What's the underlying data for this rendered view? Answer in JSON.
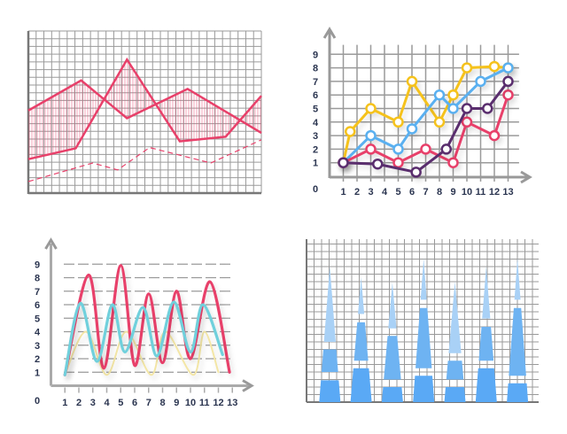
{
  "chart_data": [
    {
      "type": "area",
      "grid": true,
      "xlim": [
        0,
        30
      ],
      "ylim": [
        0,
        21
      ],
      "color": "#e8406a",
      "series": [
        {
          "style": "solid",
          "x": [
            0,
            6.8,
            12.7,
            20.5,
            30
          ],
          "y": [
            10.7,
            14.6,
            9.7,
            13.5,
            7.8
          ]
        },
        {
          "style": "solid",
          "x": [
            0,
            6.1,
            12.7,
            19.5,
            25.4,
            30
          ],
          "y": [
            4.4,
            5.8,
            17.3,
            6.7,
            7.3,
            12.6
          ]
        },
        {
          "style": "dashed",
          "x": [
            0,
            8.3,
            11.5,
            15.6,
            23.5,
            30
          ],
          "y": [
            1.5,
            3.9,
            3.0,
            5.9,
            3.9,
            6.9
          ]
        }
      ],
      "fill_between": [
        0,
        1
      ]
    },
    {
      "type": "line",
      "grid": true,
      "xlim": [
        0,
        14
      ],
      "ylim": [
        0,
        9.5
      ],
      "origin_label": "0",
      "x_ticks": [
        "1",
        "2",
        "3",
        "4",
        "5",
        "6",
        "7",
        "8",
        "9",
        "10",
        "11",
        "12",
        "13"
      ],
      "y_ticks": [
        "1",
        "2",
        "3",
        "4",
        "5",
        "6",
        "7",
        "8",
        "9"
      ],
      "series": [
        {
          "color": "#f5c21b",
          "x": [
            1,
            1.5,
            3,
            5,
            6,
            8,
            9,
            10,
            12,
            13
          ],
          "y": [
            1,
            3.3,
            5,
            4,
            7,
            4,
            6,
            8,
            8.1,
            8
          ]
        },
        {
          "color": "#5ab0f0",
          "x": [
            1,
            3,
            5,
            6,
            8,
            9,
            11,
            13
          ],
          "y": [
            1,
            3,
            2,
            3.5,
            6,
            5,
            7,
            8
          ]
        },
        {
          "color": "#e8406a",
          "x": [
            1,
            3,
            5,
            7,
            9,
            10,
            12,
            13
          ],
          "y": [
            1,
            2,
            1,
            2,
            1,
            4,
            3,
            6
          ]
        },
        {
          "color": "#5a2d6e",
          "x": [
            1,
            3.5,
            6.3,
            8.5,
            10,
            11.5,
            13
          ],
          "y": [
            1,
            0.9,
            0.3,
            2,
            5,
            5,
            7
          ]
        }
      ]
    },
    {
      "type": "line",
      "smooth": true,
      "grid": "dashed-horizontal",
      "xlim": [
        0,
        14
      ],
      "ylim": [
        0,
        10
      ],
      "origin_label": "0",
      "x_ticks": [
        "1",
        "2",
        "3",
        "4",
        "5",
        "6",
        "7",
        "8",
        "9",
        "10",
        "11",
        "12",
        "13"
      ],
      "y_ticks": [
        "1",
        "2",
        "3",
        "4",
        "5",
        "6",
        "7",
        "8",
        "9"
      ],
      "series": [
        {
          "color": "#f3e6a6",
          "x": [
            1,
            2.5,
            4,
            5.4,
            7.2,
            8.2,
            10.2,
            11,
            12
          ],
          "y": [
            0.8,
            4,
            0.8,
            4,
            0.8,
            4,
            0.8,
            4,
            1
          ]
        },
        {
          "color": "#e8406a",
          "x": [
            1,
            2.7,
            3.8,
            5,
            6,
            7,
            8,
            9,
            10,
            11.4,
            12.8
          ],
          "y": [
            0.8,
            8.2,
            1.3,
            8.9,
            1.5,
            6.8,
            1.7,
            7,
            2,
            7.7,
            1
          ]
        },
        {
          "color": "#6fd0dc",
          "x": [
            1,
            2.1,
            3.3,
            4.4,
            5.3,
            6.6,
            7.6,
            8.8,
            10,
            10.9,
            12.3
          ],
          "y": [
            0.8,
            6.1,
            1.8,
            6,
            2.5,
            5.8,
            2.2,
            6.2,
            2.5,
            6,
            2.3
          ]
        }
      ]
    },
    {
      "type": "bar",
      "stacked": true,
      "grid": true,
      "ylim": [
        0,
        21.5
      ],
      "colors": [
        "#5aa9f5",
        "#6eb3f2",
        "#a9d1f6"
      ],
      "bars": [
        {
          "segments": [
            [
              0,
              2.9
            ],
            [
              4,
              7
            ],
            [
              8,
              18
            ]
          ]
        },
        {
          "segments": [
            [
              0,
              4.5
            ],
            [
              5.5,
              10.6
            ],
            [
              11.7,
              16.6
            ]
          ]
        },
        {
          "segments": [
            [
              0,
              2
            ],
            [
              3,
              8.8
            ],
            [
              9.8,
              15.9
            ]
          ]
        },
        {
          "segments": [
            [
              0,
              3.5
            ],
            [
              4.5,
              12.5
            ],
            [
              13.6,
              19.1
            ]
          ]
        },
        {
          "segments": [
            [
              0,
              2
            ],
            [
              3,
              5.5
            ],
            [
              6.5,
              16
            ]
          ]
        },
        {
          "segments": [
            [
              0,
              4.5
            ],
            [
              5.5,
              10
            ],
            [
              11.1,
              18
            ]
          ]
        },
        {
          "segments": [
            [
              0,
              2.5
            ],
            [
              3.5,
              12.5
            ],
            [
              13.6,
              19.1
            ]
          ]
        }
      ]
    }
  ]
}
